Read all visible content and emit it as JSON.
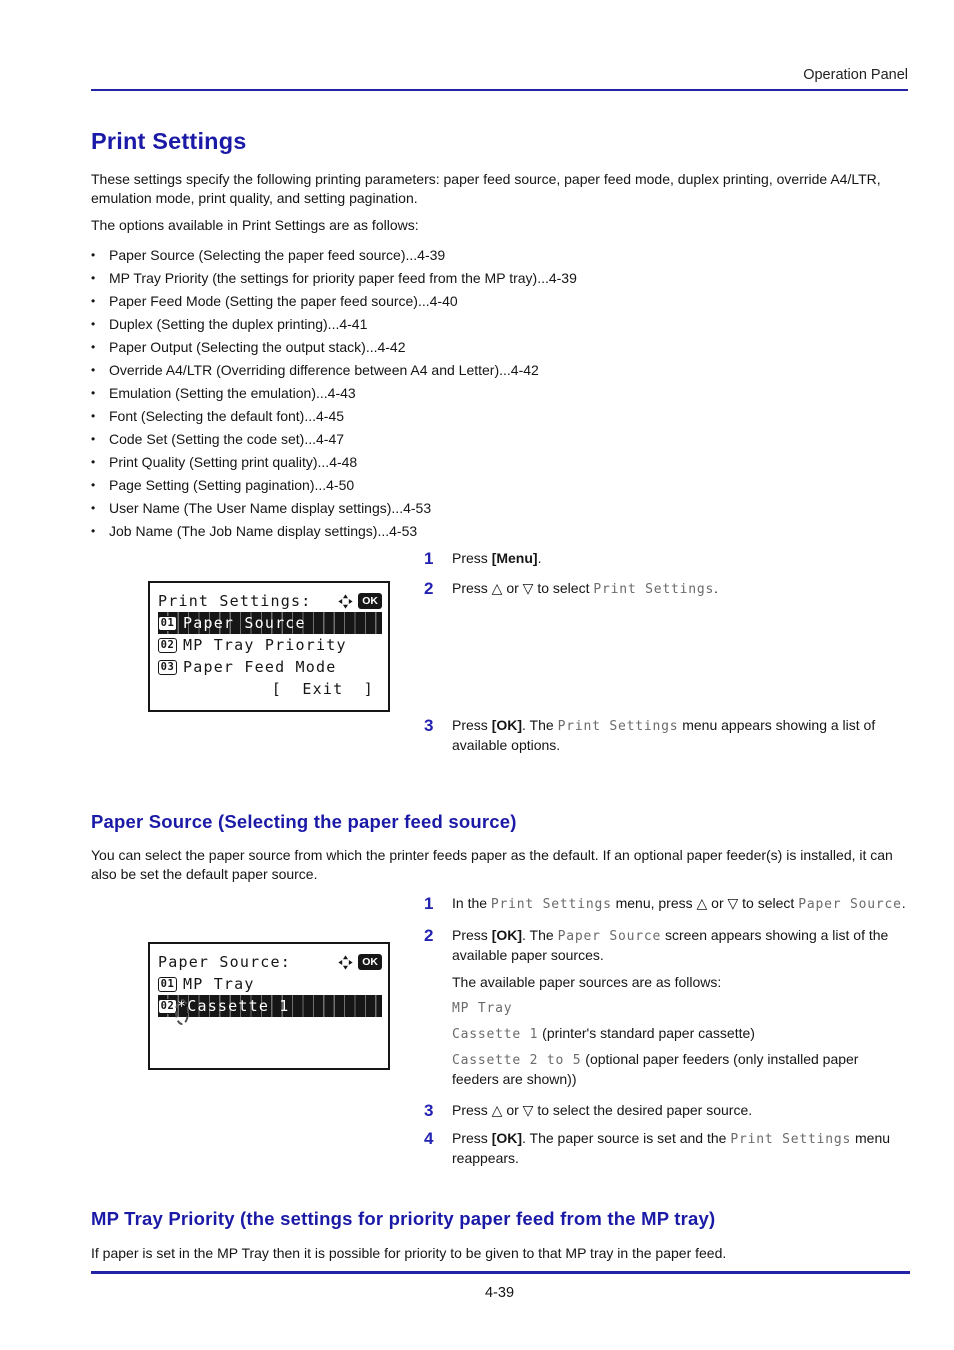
{
  "header": {
    "title": "Operation Panel"
  },
  "footer": {
    "page_number": "4-39"
  },
  "colors": {
    "heading_blue": "#1b1aa7",
    "rule_blue": "#2323a8",
    "lcd_ink": "#161616"
  },
  "icons": {
    "nav": "navigation-keys-icon",
    "ok": "ok-key-badge"
  },
  "section_print_settings": {
    "title": "Print Settings",
    "intro": "These settings specify the following printing parameters: paper feed source, paper feed mode, duplex printing, override A4/LTR, emulation mode, print quality, and setting pagination.",
    "options_lead": "The options available in Print Settings are as follows:",
    "bullet_char": "•",
    "options": [
      "Paper Source (Selecting the paper feed source)...4-39",
      "MP Tray Priority (the settings for priority paper feed from the MP tray)...4-39",
      "Paper Feed Mode (Setting the paper feed source)...4-40",
      "Duplex (Setting the duplex printing)...4-41",
      "Paper Output (Selecting the output stack)...4-42",
      "Override A4/LTR (Overriding difference between A4 and Letter)...4-42",
      "Emulation (Setting the emulation)...4-43",
      "Font (Selecting the default font)...4-45",
      "Code Set (Setting the code set)...4-47",
      "Print Quality (Setting print quality)...4-48",
      "Page Setting (Setting pagination)...4-50",
      "User Name (The User Name display settings)...4-53",
      "Job Name (The Job Name display settings)...4-53"
    ],
    "steps": [
      {
        "num": "1",
        "segs": [
          {
            "t": "Press "
          },
          {
            "t": "[Menu]",
            "c": "b"
          },
          {
            "t": "."
          }
        ]
      },
      {
        "num": "2",
        "segs": [
          {
            "t": "Press △ or ▽ to select "
          },
          {
            "t": "Print Settings",
            "c": "m"
          },
          {
            "t": "."
          }
        ]
      },
      {
        "num": "3",
        "segs": [
          {
            "t": "Press "
          },
          {
            "t": "[OK]",
            "c": "b"
          },
          {
            "t": ". The "
          },
          {
            "t": "Print Settings",
            "c": "m"
          },
          {
            "t": " menu appears showing a list of available options."
          }
        ]
      }
    ],
    "lcd": {
      "title": "Print Settings:",
      "ok_label": "OK",
      "rows": [
        {
          "badge": "01",
          "text": "Paper Source",
          "highlighted": true
        },
        {
          "badge": "02",
          "text": "MP Tray Priority",
          "highlighted": false
        },
        {
          "badge": "03",
          "text": "Paper Feed Mode",
          "highlighted": false
        }
      ],
      "exit_label": "[  Exit  ]"
    }
  },
  "section_paper_source": {
    "title": "Paper Source (Selecting the paper feed source)",
    "intro": "You can select the paper source from which the printer feeds paper as the default. If an optional paper feeder(s) is installed, it can also be set the default paper source.",
    "steps": [
      {
        "num": "1",
        "segs": [
          {
            "t": "In the "
          },
          {
            "t": "Print Settings",
            "c": "m"
          },
          {
            "t": " menu, press △ or ▽ to select "
          },
          {
            "t": "Paper Source",
            "c": "m"
          },
          {
            "t": "."
          }
        ]
      },
      {
        "num": "2",
        "segs": [
          {
            "t": "Press "
          },
          {
            "t": "[OK]",
            "c": "b"
          },
          {
            "t": ". The "
          },
          {
            "t": "Paper Source",
            "c": "m"
          },
          {
            "t": " screen appears showing a list of the available paper sources."
          }
        ],
        "note": "The available paper sources are as follows:",
        "sources": [
          {
            "segs": [
              {
                "t": "MP Tray",
                "c": "m"
              }
            ]
          },
          {
            "segs": [
              {
                "t": "Cassette 1",
                "c": "m"
              },
              {
                "t": " (printer's standard paper cassette)"
              }
            ]
          },
          {
            "segs": [
              {
                "t": "Cassette 2 to 5",
                "c": "m"
              },
              {
                "t": " (optional paper feeders (only installed paper feeders are shown))"
              }
            ]
          }
        ]
      },
      {
        "num": "3",
        "segs": [
          {
            "t": "Press △ or ▽ to select the desired paper source."
          }
        ]
      },
      {
        "num": "4",
        "segs": [
          {
            "t": "Press "
          },
          {
            "t": "[OK]",
            "c": "b"
          },
          {
            "t": ". The paper source is set and the "
          },
          {
            "t": "Print Settings",
            "c": "m"
          },
          {
            "t": " menu reappears."
          }
        ]
      }
    ],
    "lcd": {
      "title": "Paper Source:",
      "ok_label": "OK",
      "rows": [
        {
          "badge": "01",
          "text": "MP Tray",
          "highlighted": false
        },
        {
          "badge": "02",
          "star": "*",
          "text": "Cassette 1",
          "highlighted": true
        }
      ]
    }
  },
  "section_mp_tray_priority": {
    "title": "MP Tray Priority (the settings for priority paper feed from the MP tray)",
    "intro": "If paper is set in the MP Tray then it is possible for priority to be given to that MP tray in the paper feed."
  }
}
